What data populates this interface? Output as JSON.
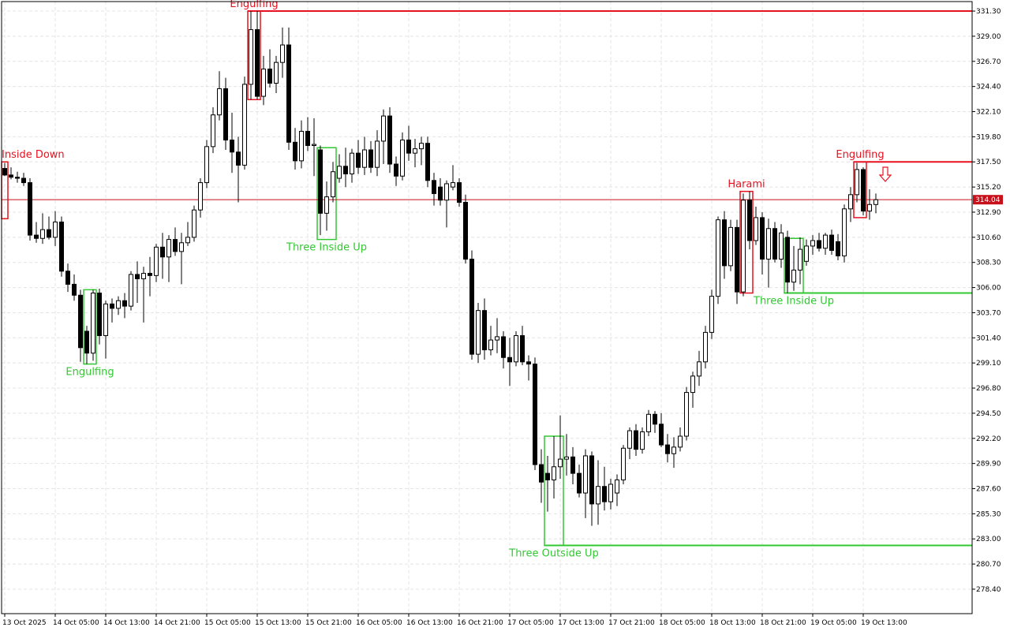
{
  "chart_data": {
    "type": "candlestick",
    "categories": [
      "13 Oct 2025",
      null,
      null,
      null,
      null,
      null,
      null,
      null,
      "14 Oct 05:00",
      null,
      null,
      null,
      null,
      null,
      null,
      null,
      "14 Oct 13:00",
      null,
      null,
      null,
      null,
      null,
      null,
      null,
      "14 Oct 21:00",
      null,
      null,
      null,
      null,
      null,
      null,
      null,
      "15 Oct 05:00",
      null,
      null,
      null,
      null,
      null,
      null,
      null,
      "15 Oct 13:00",
      null,
      null,
      null,
      null,
      null,
      null,
      null,
      "15 Oct 21:00",
      null,
      null,
      null,
      null,
      null,
      null,
      null,
      "16 Oct 05:00",
      null,
      null,
      null,
      null,
      null,
      null,
      null,
      "16 Oct 13:00",
      null,
      null,
      null,
      null,
      null,
      null,
      null,
      "16 Oct 21:00",
      null,
      null,
      null,
      null,
      null,
      null,
      null,
      "17 Oct 05:00",
      null,
      null,
      null,
      null,
      null,
      null,
      null,
      "17 Oct 13:00",
      null,
      null,
      null,
      null,
      null,
      null,
      null,
      "17 Oct 21:00",
      null,
      null,
      null,
      null,
      null,
      null,
      null,
      "18 Oct 05:00",
      null,
      null,
      null,
      null,
      null,
      null,
      null,
      "18 Oct 13:00",
      null,
      null,
      null,
      null,
      null,
      null,
      null,
      "18 Oct 21:00",
      null,
      null,
      null,
      null,
      null,
      null,
      null,
      "19 Oct 05:00",
      null,
      null,
      null,
      null,
      null,
      null,
      null,
      "19 Oct 13:00",
      null,
      null
    ],
    "ohlc": [
      [
        316.9,
        317.4,
        316.2,
        316.3
      ],
      [
        316.3,
        317.0,
        315.9,
        316.1
      ],
      [
        316.1,
        316.6,
        315.6,
        316.0
      ],
      [
        316.0,
        316.5,
        315.3,
        315.6
      ],
      [
        315.6,
        316.0,
        310.3,
        310.8
      ],
      [
        310.8,
        312.0,
        310.1,
        310.5
      ],
      [
        310.5,
        312.8,
        310.0,
        311.3
      ],
      [
        311.3,
        312.5,
        310.4,
        310.6
      ],
      [
        310.6,
        313.0,
        309.8,
        312.0
      ],
      [
        312.0,
        312.5,
        307.0,
        307.5
      ],
      [
        307.5,
        308.2,
        305.6,
        306.3
      ],
      [
        306.3,
        307.2,
        304.8,
        305.3
      ],
      [
        305.3,
        305.8,
        299.2,
        300.5
      ],
      [
        302.0,
        302.5,
        299.0,
        300.0
      ],
      [
        300.0,
        305.8,
        299.3,
        305.5
      ],
      [
        305.5,
        305.9,
        300.8,
        301.6
      ],
      [
        301.6,
        304.8,
        299.5,
        304.5
      ],
      [
        304.5,
        305.0,
        302.8,
        304.1
      ],
      [
        304.1,
        305.2,
        303.5,
        304.8
      ],
      [
        304.8,
        305.5,
        303.2,
        304.3
      ],
      [
        304.3,
        307.5,
        303.9,
        307.2
      ],
      [
        307.2,
        308.4,
        304.6,
        306.8
      ],
      [
        306.8,
        307.9,
        302.8,
        307.3
      ],
      [
        307.3,
        308.8,
        305.2,
        307.1
      ],
      [
        307.1,
        310.0,
        306.5,
        309.7
      ],
      [
        309.7,
        311.0,
        306.8,
        308.8
      ],
      [
        308.8,
        310.8,
        306.5,
        310.4
      ],
      [
        310.4,
        311.5,
        308.9,
        309.3
      ],
      [
        309.3,
        311.0,
        306.3,
        310.1
      ],
      [
        310.1,
        312.0,
        309.8,
        310.6
      ],
      [
        310.6,
        313.5,
        310.2,
        313.1
      ],
      [
        313.1,
        316.0,
        312.4,
        315.6
      ],
      [
        315.6,
        319.5,
        315.1,
        318.9
      ],
      [
        318.9,
        322.5,
        318.3,
        321.8
      ],
      [
        321.8,
        325.8,
        321.3,
        324.2
      ],
      [
        324.2,
        325.2,
        318.6,
        319.5
      ],
      [
        319.5,
        322.0,
        316.5,
        318.4
      ],
      [
        318.4,
        319.8,
        313.8,
        317.2
      ],
      [
        317.2,
        325.3,
        316.8,
        324.6
      ],
      [
        324.6,
        331.3,
        323.2,
        329.6
      ],
      [
        329.6,
        331.3,
        323.2,
        323.5
      ],
      [
        323.5,
        327.2,
        322.7,
        326.0
      ],
      [
        326.0,
        327.8,
        324.3,
        324.7
      ],
      [
        324.7,
        327.2,
        323.8,
        326.6
      ],
      [
        326.6,
        329.8,
        325.2,
        328.2
      ],
      [
        328.2,
        329.8,
        318.6,
        319.3
      ],
      [
        319.3,
        320.6,
        316.8,
        317.6
      ],
      [
        317.6,
        321.3,
        316.9,
        320.3
      ],
      [
        320.3,
        321.6,
        318.5,
        319.0
      ],
      [
        319.0,
        321.5,
        316.2,
        319.1
      ],
      [
        318.6,
        319.0,
        310.8,
        312.8
      ],
      [
        312.8,
        315.7,
        311.2,
        314.3
      ],
      [
        314.3,
        317.5,
        313.8,
        316.6
      ],
      [
        316.0,
        318.2,
        315.6,
        317.1
      ],
      [
        317.1,
        318.8,
        315.2,
        316.4
      ],
      [
        316.4,
        318.7,
        315.6,
        318.3
      ],
      [
        318.3,
        319.5,
        316.4,
        317.0
      ],
      [
        317.0,
        319.8,
        316.3,
        318.6
      ],
      [
        318.6,
        319.4,
        316.5,
        317.0
      ],
      [
        317.0,
        320.4,
        316.2,
        319.4
      ],
      [
        319.4,
        322.3,
        317.3,
        321.7
      ],
      [
        321.7,
        322.5,
        316.5,
        317.3
      ],
      [
        317.3,
        318.0,
        315.3,
        316.2
      ],
      [
        316.2,
        320.2,
        315.8,
        319.5
      ],
      [
        319.5,
        320.8,
        317.6,
        318.3
      ],
      [
        318.3,
        319.6,
        317.0,
        318.7
      ],
      [
        318.7,
        319.8,
        317.2,
        319.2
      ],
      [
        319.2,
        319.8,
        315.2,
        315.8
      ],
      [
        315.8,
        316.5,
        313.5,
        314.6
      ],
      [
        315.2,
        316.0,
        313.5,
        314.0
      ],
      [
        314.0,
        315.8,
        311.5,
        315.5
      ],
      [
        315.2,
        317.2,
        314.9,
        315.6
      ],
      [
        315.6,
        316.0,
        313.4,
        313.8
      ],
      [
        313.8,
        314.5,
        308.2,
        308.6
      ],
      [
        308.6,
        309.4,
        299.4,
        299.9
      ],
      [
        299.9,
        304.6,
        299.1,
        303.9
      ],
      [
        303.9,
        305.0,
        299.4,
        300.3
      ],
      [
        300.3,
        302.5,
        299.8,
        301.2
      ],
      [
        301.2,
        303.2,
        300.0,
        301.5
      ],
      [
        301.5,
        302.0,
        298.6,
        299.6
      ],
      [
        299.6,
        301.4,
        297.0,
        299.2
      ],
      [
        299.2,
        302.0,
        298.8,
        301.6
      ],
      [
        301.6,
        302.5,
        298.9,
        299.2
      ],
      [
        299.2,
        299.8,
        297.5,
        299.0
      ],
      [
        299.0,
        299.6,
        289.3,
        289.8
      ],
      [
        289.8,
        291.2,
        286.3,
        288.2
      ],
      [
        289.0,
        290.6,
        285.5,
        288.4
      ],
      [
        288.4,
        292.4,
        286.7,
        289.6
      ],
      [
        289.6,
        294.3,
        288.5,
        290.3
      ],
      [
        290.3,
        292.6,
        288.8,
        290.5
      ],
      [
        290.5,
        291.4,
        288.0,
        289.0
      ],
      [
        289.0,
        289.8,
        286.8,
        287.2
      ],
      [
        287.2,
        291.2,
        284.9,
        290.6
      ],
      [
        290.6,
        291.0,
        284.2,
        286.2
      ],
      [
        286.2,
        290.2,
        284.3,
        287.8
      ],
      [
        287.8,
        289.6,
        285.6,
        286.4
      ],
      [
        286.4,
        288.5,
        285.7,
        288.0
      ],
      [
        287.2,
        288.9,
        286.0,
        288.4
      ],
      [
        288.4,
        291.6,
        288.0,
        291.3
      ],
      [
        291.3,
        293.2,
        290.3,
        292.9
      ],
      [
        292.9,
        293.5,
        290.6,
        291.2
      ],
      [
        291.2,
        293.2,
        290.8,
        292.8
      ],
      [
        292.8,
        294.8,
        292.4,
        294.4
      ],
      [
        294.4,
        294.7,
        292.7,
        293.5
      ],
      [
        293.5,
        294.5,
        291.4,
        291.6
      ],
      [
        291.6,
        292.6,
        290.0,
        290.8
      ],
      [
        290.8,
        292.3,
        289.5,
        291.4
      ],
      [
        291.4,
        293.2,
        291.0,
        292.4
      ],
      [
        292.4,
        296.9,
        292.0,
        296.4
      ],
      [
        296.4,
        298.3,
        295.0,
        297.9
      ],
      [
        297.9,
        300.2,
        297.0,
        299.2
      ],
      [
        299.2,
        302.5,
        298.6,
        301.9
      ],
      [
        301.9,
        305.8,
        301.3,
        305.2
      ],
      [
        305.2,
        312.5,
        304.5,
        312.2
      ],
      [
        312.2,
        313.0,
        306.8,
        308.0
      ],
      [
        308.0,
        312.2,
        307.5,
        311.5
      ],
      [
        311.5,
        312.2,
        304.5,
        305.6
      ],
      [
        305.6,
        314.6,
        305.2,
        314.0
      ],
      [
        314.0,
        314.8,
        309.5,
        310.3
      ],
      [
        310.3,
        313.4,
        309.9,
        312.4
      ],
      [
        312.4,
        312.9,
        307.2,
        308.6
      ],
      [
        308.6,
        312.3,
        306.0,
        311.4
      ],
      [
        311.4,
        312.0,
        308.3,
        308.6
      ],
      [
        308.6,
        311.8,
        307.8,
        311.0
      ],
      [
        310.6,
        311.2,
        305.5,
        306.5
      ],
      [
        306.5,
        309.8,
        305.7,
        307.6
      ],
      [
        307.6,
        310.6,
        306.3,
        309.5
      ],
      [
        308.4,
        310.4,
        308.0,
        309.8
      ],
      [
        309.8,
        310.8,
        309.0,
        310.3
      ],
      [
        310.3,
        311.0,
        309.3,
        309.6
      ],
      [
        309.6,
        311.0,
        309.0,
        310.8
      ],
      [
        310.8,
        311.3,
        309.0,
        309.4
      ],
      [
        310.2,
        310.9,
        308.5,
        308.9
      ],
      [
        308.9,
        313.6,
        308.3,
        313.2
      ],
      [
        313.2,
        315.2,
        312.0,
        314.5
      ],
      [
        314.5,
        317.4,
        313.8,
        316.8
      ],
      [
        316.8,
        317.0,
        312.6,
        313.0
      ],
      [
        313.0,
        315.0,
        312.2,
        313.6
      ],
      [
        313.6,
        314.6,
        312.8,
        314.04
      ]
    ],
    "patterns": [
      {
        "label": "Inside Down",
        "color": "#e8111f",
        "from": 0,
        "to": 0,
        "top": 317.5,
        "bottom": 312.3,
        "label_pos": "above"
      },
      {
        "label": "Engulfing",
        "color": "#32c832",
        "from": 13,
        "to": 14,
        "top": 305.8,
        "bottom": 299.0,
        "label_pos": "below"
      },
      {
        "label": "Engulfing",
        "color": "#e8111f",
        "from": 39,
        "to": 40,
        "top": 331.3,
        "bottom": 323.2,
        "label_pos": "above",
        "level": 331.3
      },
      {
        "label": "Three Inside Up",
        "color": "#32c832",
        "from": 50,
        "to": 52,
        "top": 318.8,
        "bottom": 310.4,
        "label_pos": "below"
      },
      {
        "label": "Three Outside Up",
        "color": "#32c832",
        "from": 86,
        "to": 88,
        "top": 292.4,
        "bottom": 282.4,
        "label_pos": "below",
        "level": 282.4
      },
      {
        "label": "Harami",
        "color": "#e8111f",
        "from": 117,
        "to": 118,
        "top": 314.8,
        "bottom": 305.5,
        "label_pos": "above"
      },
      {
        "label": "Three Inside Up",
        "color": "#32c832",
        "from": 124,
        "to": 126,
        "top": 310.5,
        "bottom": 305.5,
        "label_pos": "below",
        "level": 305.5
      },
      {
        "label": "Engulfing",
        "color": "#e8111f",
        "from": 135,
        "to": 136,
        "top": 317.5,
        "bottom": 312.4,
        "label_pos": "above",
        "level": 317.5
      }
    ],
    "last_price": 314.04,
    "last_price_color": "#c8101a",
    "ylim": [
      276.16,
      332.17
    ],
    "yticks": [
      {
        "value": 331.3,
        "label": "331.30"
      },
      {
        "value": 329,
        "label": "329.00"
      },
      {
        "value": 326.7,
        "label": "326.70"
      },
      {
        "value": 324.4,
        "label": "324.40"
      },
      {
        "value": 322.1,
        "label": "322.10"
      },
      {
        "value": 319.8,
        "label": "319.80"
      },
      {
        "value": 317.5,
        "label": "317.50"
      },
      {
        "value": 315.2,
        "label": "315.20"
      },
      {
        "value": 312.9,
        "label": "312.90"
      },
      {
        "value": 310.6,
        "label": "310.60"
      },
      {
        "value": 308.3,
        "label": "308.30"
      },
      {
        "value": 306,
        "label": "306.00"
      },
      {
        "value": 303.7,
        "label": "303.70"
      },
      {
        "value": 301.4,
        "label": "301.40"
      },
      {
        "value": 299.1,
        "label": "299.10"
      },
      {
        "value": 296.8,
        "label": "296.80"
      },
      {
        "value": 294.5,
        "label": "294.50"
      },
      {
        "value": 292.2,
        "label": "292.20"
      },
      {
        "value": 289.9,
        "label": "289.90"
      },
      {
        "value": 287.6,
        "label": "287.60"
      },
      {
        "value": 285.3,
        "label": "285.30"
      },
      {
        "value": 283,
        "label": "283.00"
      },
      {
        "value": 280.7,
        "label": "280.70"
      },
      {
        "value": 278.4,
        "label": "278.40"
      }
    ],
    "grid": true
  }
}
